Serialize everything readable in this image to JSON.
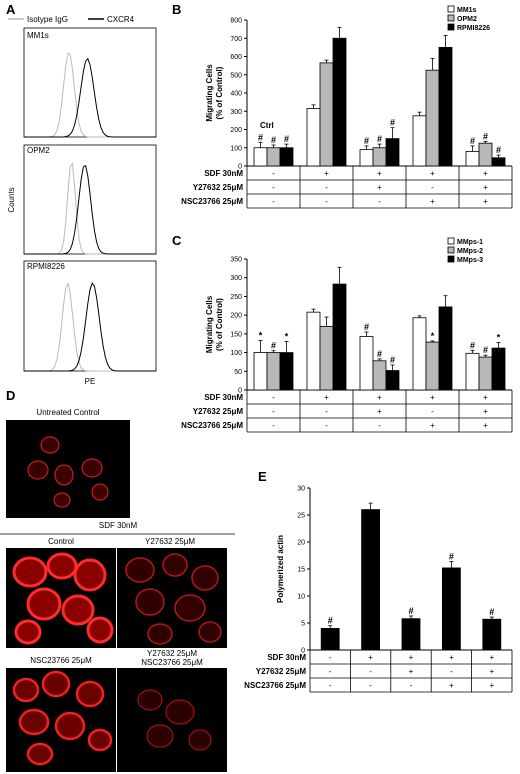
{
  "panels": {
    "A": {
      "label": "A",
      "legend": [
        "Isotype IgG",
        "CXCR4"
      ],
      "subpanels": [
        "MM1s",
        "OPM2",
        "RPMI8226"
      ],
      "ylabel": "Counts",
      "xlabel": "PE"
    },
    "D": {
      "label": "D",
      "untreated_label": "Untreated Control",
      "sdf_label": "SDF 30nM",
      "images": [
        "Control",
        "Y27632  25μM",
        "NSC23766  25μM",
        "Y27632  25μM"
      ],
      "image4_line2": "NSC23766  25μM"
    }
  },
  "conditions": {
    "rows": [
      "SDF 30nM",
      "Y27632 25μM",
      "NSC23766 25μM"
    ],
    "matrix": [
      [
        "-",
        "+",
        "+",
        "+",
        "+"
      ],
      [
        "-",
        "-",
        "+",
        "-",
        "+"
      ],
      [
        "-",
        "-",
        "-",
        "+",
        "+"
      ]
    ]
  },
  "chart_data": [
    {
      "panel": "B",
      "type": "bar",
      "ylabel": "Migrating Cells (% of Control)",
      "ylim": [
        0,
        800
      ],
      "yticks": [
        0,
        100,
        200,
        300,
        400,
        500,
        600,
        700,
        800
      ],
      "groups": 5,
      "series": [
        {
          "name": "MM1s",
          "color": "#ffffff",
          "values": [
            100,
            315,
            90,
            275,
            80
          ],
          "errors": [
            30,
            20,
            20,
            20,
            30
          ]
        },
        {
          "name": "OPM2",
          "color": "#b8b8b8",
          "values": [
            100,
            565,
            100,
            525,
            125
          ],
          "errors": [
            15,
            15,
            20,
            65,
            10
          ]
        },
        {
          "name": "RPMI8226",
          "color": "#000000",
          "values": [
            100,
            700,
            150,
            650,
            45
          ],
          "errors": [
            20,
            60,
            60,
            65,
            15
          ]
        }
      ],
      "marks": [
        [
          "#",
          "#",
          "#"
        ],
        [
          "",
          "",
          ""
        ],
        [
          "#",
          "#",
          "#"
        ],
        [
          "",
          "",
          ""
        ],
        [
          "#",
          "#",
          "#"
        ]
      ],
      "annotations": [
        "Ctrl"
      ]
    },
    {
      "panel": "C",
      "type": "bar",
      "ylabel": "Migrating Cells (% of Control)",
      "ylim": [
        0,
        350
      ],
      "yticks": [
        0,
        50,
        100,
        150,
        200,
        250,
        300,
        350
      ],
      "groups": 5,
      "series": [
        {
          "name": "MMps-1",
          "color": "#ffffff",
          "values": [
            100,
            208,
            143,
            193,
            98
          ],
          "errors": [
            32,
            8,
            12,
            5,
            8
          ]
        },
        {
          "name": "MMps-2",
          "color": "#b8b8b8",
          "values": [
            100,
            170,
            78,
            128,
            88
          ],
          "errors": [
            5,
            25,
            5,
            3,
            5
          ]
        },
        {
          "name": "MMps-3",
          "color": "#000000",
          "values": [
            100,
            283,
            52,
            222,
            112
          ],
          "errors": [
            30,
            45,
            15,
            30,
            15
          ]
        }
      ],
      "marks": [
        [
          "*",
          "#",
          "*"
        ],
        [
          "",
          "",
          ""
        ],
        [
          "#",
          "#",
          "#"
        ],
        [
          "",
          "*",
          ""
        ],
        [
          "#",
          "#",
          "*"
        ]
      ]
    },
    {
      "panel": "E",
      "type": "bar",
      "ylabel": "Polymerized actin",
      "ylim": [
        0,
        30
      ],
      "yticks": [
        0,
        5,
        10,
        15,
        20,
        25,
        30
      ],
      "groups": 5,
      "series": [
        {
          "name": "",
          "color": "#000000",
          "values": [
            4,
            26,
            5.8,
            15.2,
            5.7
          ],
          "errors": [
            0.5,
            1.2,
            0.5,
            1.2,
            0.4
          ]
        }
      ],
      "marks": [
        [
          "#"
        ],
        [
          ""
        ],
        [
          "#"
        ],
        [
          "#"
        ],
        [
          "#"
        ]
      ]
    }
  ]
}
